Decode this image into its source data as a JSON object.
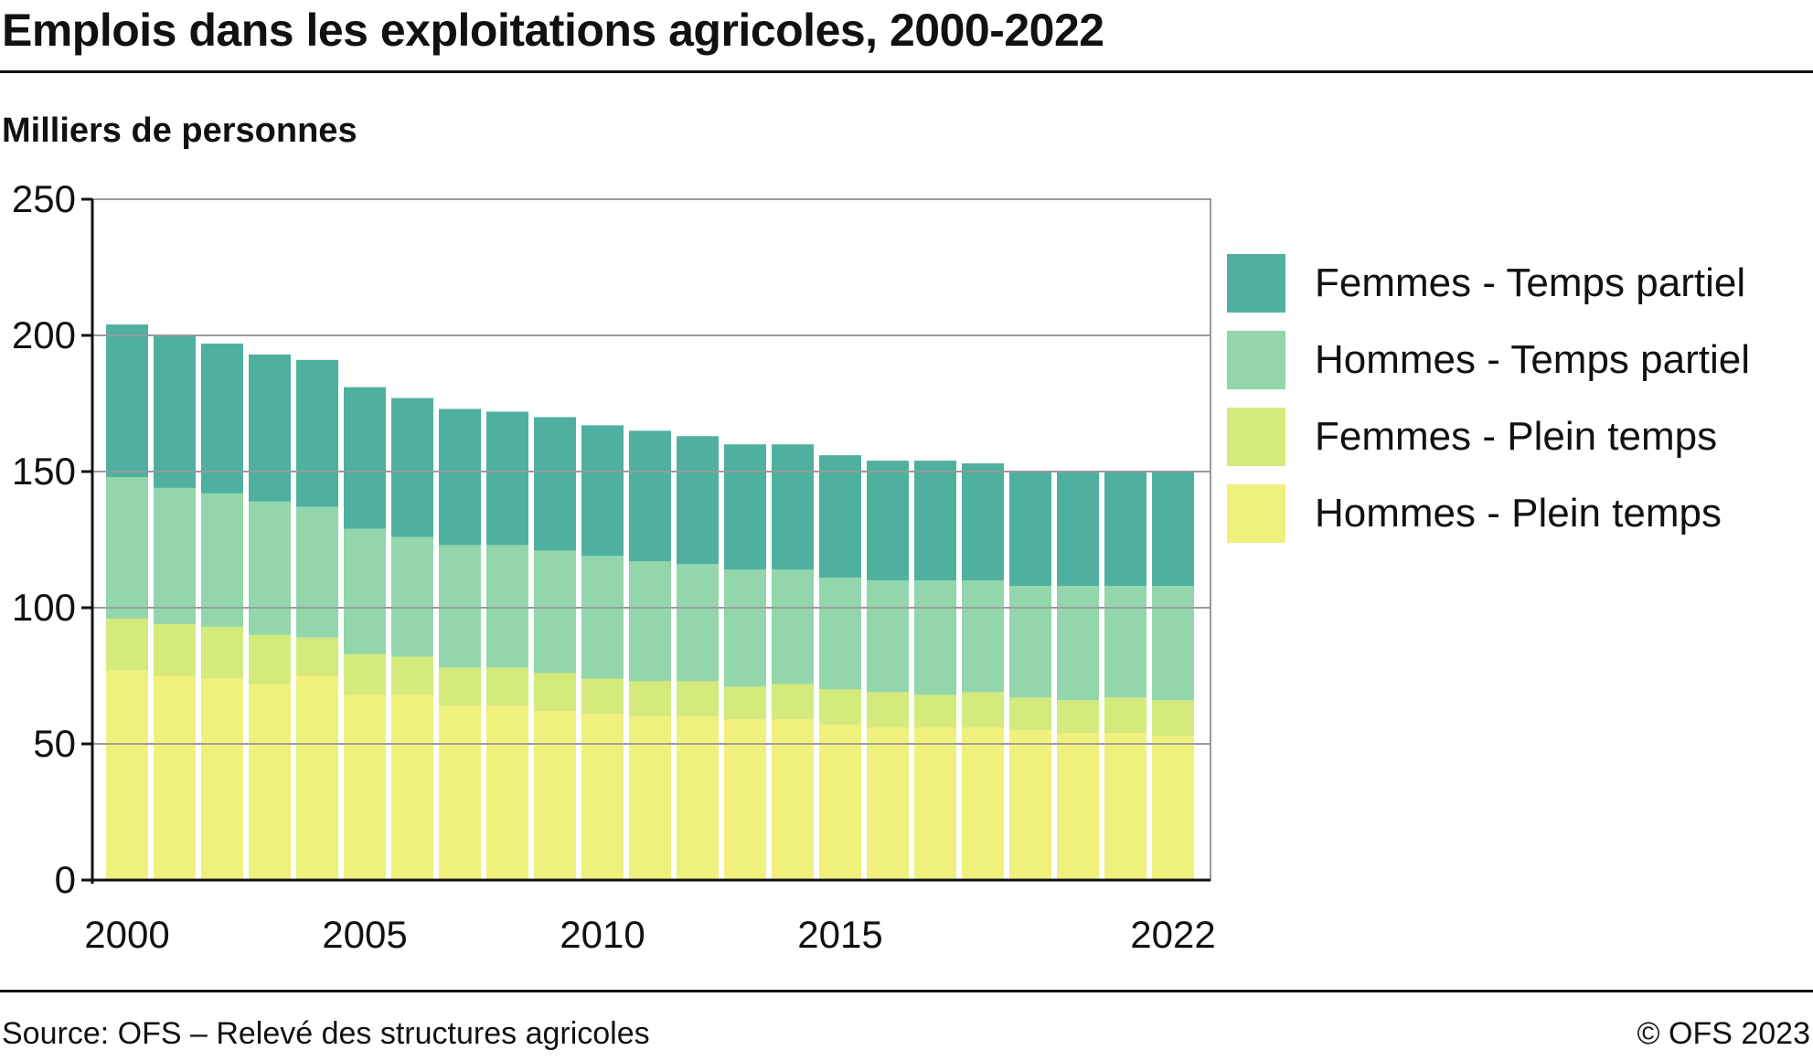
{
  "title": "Emplois dans les exploitations agricoles, 2000-2022",
  "ylabel": "Milliers de personnes",
  "source": "Source: OFS – Relevé des structures agricoles",
  "copyright": "© OFS 2023",
  "colors": {
    "femmes_partiel": "#50b0a0",
    "hommes_partiel": "#93d6ab",
    "femmes_plein": "#d4ea7b",
    "hommes_plein": "#f0f07c",
    "grid": "#9a9a9a",
    "axis": "#111111"
  },
  "legend": [
    {
      "label": "Femmes - Temps partiel",
      "color": "#50b0a0"
    },
    {
      "label": "Hommes - Temps partiel",
      "color": "#93d6ab"
    },
    {
      "label": "Femmes - Plein temps",
      "color": "#d4ea7b"
    },
    {
      "label": "Hommes - Plein temps",
      "color": "#f0f07c"
    }
  ],
  "chart_data": {
    "type": "bar",
    "stacked": true,
    "title": "Emplois dans les exploitations agricoles, 2000-2022",
    "ylabel": "Milliers de personnes",
    "xlabel": "",
    "ylim": [
      0,
      250
    ],
    "yticks": [
      0,
      50,
      100,
      150,
      200,
      250
    ],
    "xtick_labels": [
      "2000",
      "2005",
      "2010",
      "2015",
      "2022"
    ],
    "grid": true,
    "legend_position": "right",
    "categories": [
      "2000",
      "2001",
      "2002",
      "2003",
      "2004",
      "2005",
      "2006",
      "2007",
      "2008",
      "2009",
      "2010",
      "2011",
      "2012",
      "2013",
      "2014",
      "2015",
      "2016",
      "2017",
      "2018",
      "2019",
      "2020",
      "2021",
      "2022"
    ],
    "series": [
      {
        "name": "Hommes - Plein temps",
        "color": "#f0f07c",
        "values": [
          77,
          75,
          74,
          72,
          75,
          68,
          68,
          64,
          64,
          62,
          61,
          60,
          60,
          59,
          59,
          57,
          56,
          56,
          56,
          55,
          54,
          54,
          53
        ]
      },
      {
        "name": "Femmes - Plein temps",
        "color": "#d4ea7b",
        "values": [
          19,
          19,
          19,
          18,
          14,
          15,
          14,
          14,
          14,
          14,
          13,
          13,
          13,
          12,
          13,
          13,
          13,
          12,
          13,
          12,
          12,
          13,
          13
        ]
      },
      {
        "name": "Hommes - Temps partiel",
        "color": "#93d6ab",
        "values": [
          52,
          50,
          49,
          49,
          48,
          46,
          44,
          45,
          45,
          45,
          45,
          44,
          43,
          43,
          42,
          41,
          41,
          42,
          41,
          41,
          42,
          41,
          42
        ]
      },
      {
        "name": "Femmes - Temps partiel",
        "color": "#50b0a0",
        "values": [
          56,
          56,
          55,
          54,
          54,
          52,
          51,
          50,
          49,
          49,
          48,
          48,
          47,
          46,
          46,
          45,
          44,
          44,
          43,
          42,
          42,
          42,
          42
        ]
      }
    ]
  }
}
